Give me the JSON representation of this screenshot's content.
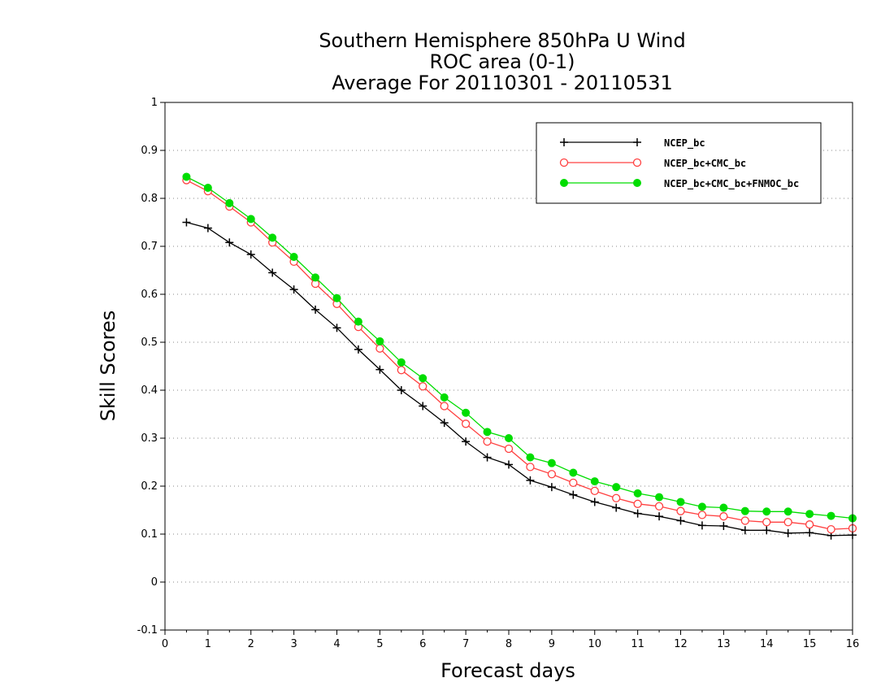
{
  "chart_data": {
    "type": "line",
    "title_lines": [
      "Southern Hemisphere 850hPa U Wind",
      "ROC area (0-1)",
      "Average For 20110301 - 20110531"
    ],
    "xlabel": "Forecast days",
    "ylabel": "Skill Scores",
    "xlim": [
      0,
      16
    ],
    "ylim": [
      -0.1,
      1
    ],
    "xticks": [
      0,
      1,
      2,
      3,
      4,
      5,
      6,
      7,
      8,
      9,
      10,
      11,
      12,
      13,
      14,
      15,
      16
    ],
    "xtick_labels": [
      "0",
      "1",
      "2",
      "3",
      "4",
      "5",
      "6",
      "7",
      "8",
      "9",
      "10",
      "11",
      "12",
      "13",
      "14",
      "15",
      "16"
    ],
    "yticks": [
      -0.1,
      0,
      0.1,
      0.2,
      0.3,
      0.4,
      0.5,
      0.6,
      0.7,
      0.8,
      0.9,
      1
    ],
    "ytick_labels": [
      "-0.1",
      "0",
      "0.1",
      "0.2",
      "0.3",
      "0.4",
      "0.5",
      "0.6",
      "0.7",
      "0.8",
      "0.9",
      "1"
    ],
    "grid": "horizontal dotted",
    "legend_position": "top-right",
    "x": [
      0.5,
      1,
      1.5,
      2,
      2.5,
      3,
      3.5,
      4,
      4.5,
      5,
      5.5,
      6,
      6.5,
      7,
      7.5,
      8,
      8.5,
      9,
      9.5,
      10,
      10.5,
      11,
      11.5,
      12,
      12.5,
      13,
      13.5,
      14,
      14.5,
      15,
      15.5,
      16
    ],
    "series": [
      {
        "name": "NCEP_bc",
        "color": "#000000",
        "marker": "plus",
        "values": [
          0.75,
          0.738,
          0.708,
          0.683,
          0.645,
          0.61,
          0.568,
          0.53,
          0.485,
          0.443,
          0.4,
          0.367,
          0.332,
          0.293,
          0.26,
          0.245,
          0.212,
          0.198,
          0.182,
          0.167,
          0.155,
          0.143,
          0.137,
          0.128,
          0.118,
          0.117,
          0.108,
          0.108,
          0.102,
          0.103,
          0.097,
          0.098
        ]
      },
      {
        "name": "NCEP_bc+CMC_bc",
        "color": "#ff4040",
        "marker": "open-circle",
        "values": [
          0.838,
          0.815,
          0.783,
          0.75,
          0.708,
          0.668,
          0.622,
          0.58,
          0.532,
          0.487,
          0.442,
          0.408,
          0.367,
          0.33,
          0.293,
          0.278,
          0.24,
          0.225,
          0.207,
          0.19,
          0.175,
          0.163,
          0.158,
          0.148,
          0.14,
          0.137,
          0.128,
          0.125,
          0.125,
          0.12,
          0.11,
          0.112
        ]
      },
      {
        "name": "NCEP_bc+CMC_bc+FNMOC_bc",
        "color": "#00dd00",
        "marker": "filled-circle",
        "values": [
          0.845,
          0.822,
          0.79,
          0.757,
          0.718,
          0.678,
          0.635,
          0.592,
          0.543,
          0.502,
          0.458,
          0.425,
          0.385,
          0.353,
          0.313,
          0.3,
          0.26,
          0.248,
          0.228,
          0.21,
          0.198,
          0.185,
          0.177,
          0.167,
          0.157,
          0.155,
          0.148,
          0.147,
          0.147,
          0.142,
          0.138,
          0.133
        ]
      }
    ]
  }
}
